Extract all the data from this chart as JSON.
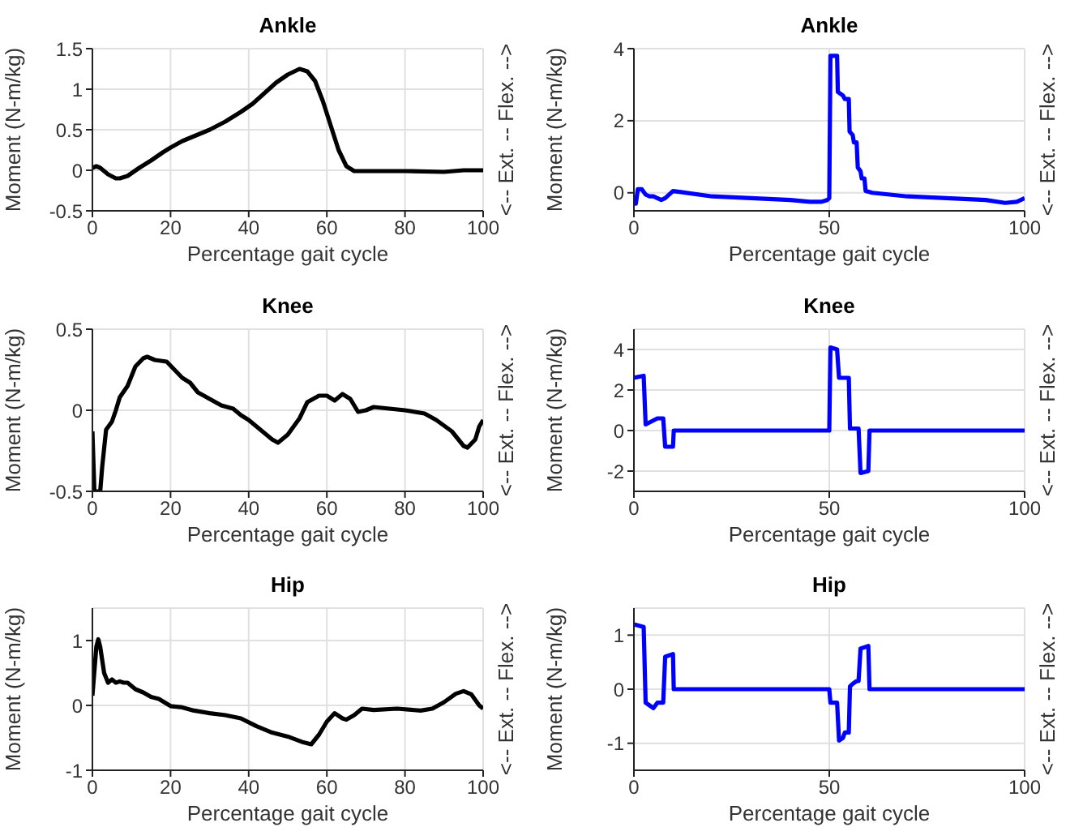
{
  "chart_data": [
    {
      "type": "line",
      "title": "Ankle",
      "xlabel": "Percentage gait cycle",
      "ylabel": "Moment (N-m/kg)",
      "y2label": "<-- Ext. -- Flex. -->",
      "grid": true,
      "xlim": [
        0,
        100
      ],
      "xticks": [
        0,
        20,
        40,
        60,
        80,
        100
      ],
      "ylim": [
        -0.5,
        1.5
      ],
      "yticks": [
        -0.5,
        0,
        0.5,
        1,
        1.5
      ],
      "x": [
        0,
        1,
        2,
        4,
        6,
        7,
        9,
        12,
        15,
        18,
        20,
        23,
        26,
        30,
        34,
        38,
        41,
        44,
        47,
        50,
        53,
        55,
        57,
        59,
        61,
        63,
        65,
        67,
        70,
        80,
        90,
        95,
        100
      ],
      "series": [
        {
          "color": "#000000",
          "values": [
            0.03,
            0.05,
            0.03,
            -0.05,
            -0.1,
            -0.1,
            -0.07,
            0.03,
            0.12,
            0.22,
            0.28,
            0.36,
            0.42,
            0.5,
            0.6,
            0.72,
            0.82,
            0.95,
            1.08,
            1.18,
            1.25,
            1.22,
            1.1,
            0.85,
            0.55,
            0.25,
            0.05,
            -0.01,
            -0.01,
            -0.01,
            -0.02,
            0,
            0
          ]
        }
      ]
    },
    {
      "type": "line",
      "title": "Ankle",
      "xlabel": "Percentage gait cycle",
      "ylabel": "Moment (N-m/kg)",
      "y2label": "<-- Ext. -- Flex. -->",
      "grid": true,
      "xlim": [
        0,
        100
      ],
      "xticks": [
        0,
        50,
        100
      ],
      "ylim": [
        -0.5,
        4
      ],
      "yticks": [
        0,
        2,
        4
      ],
      "x": [
        0,
        0.5,
        1,
        2,
        3,
        4,
        5,
        6,
        7,
        8,
        10,
        12,
        20,
        30,
        40,
        45,
        48,
        49.5,
        50,
        50.3,
        52,
        52.2,
        53.5,
        54,
        55,
        55.2,
        56,
        56.3,
        57,
        57.3,
        58,
        58.3,
        59,
        59.3,
        61,
        70,
        80,
        90,
        95,
        98,
        100
      ],
      "series": [
        {
          "color": "#0000ff",
          "values": [
            -0.3,
            -0.3,
            0.1,
            0.1,
            -0.05,
            -0.1,
            -0.1,
            -0.15,
            -0.2,
            -0.15,
            0.05,
            0.02,
            -0.1,
            -0.15,
            -0.2,
            -0.25,
            -0.25,
            -0.2,
            -0.15,
            3.8,
            3.8,
            2.8,
            2.7,
            2.6,
            2.6,
            1.7,
            1.6,
            1.4,
            1.4,
            0.7,
            0.6,
            0.4,
            0.4,
            0.05,
            0,
            -0.1,
            -0.15,
            -0.2,
            -0.28,
            -0.25,
            -0.15
          ]
        }
      ]
    },
    {
      "type": "line",
      "title": "Knee",
      "xlabel": "Percentage gait cycle",
      "ylabel": "Moment (N-m/kg)",
      "y2label": "<-- Ext. -- Flex. -->",
      "grid": true,
      "xlim": [
        0,
        100
      ],
      "xticks": [
        0,
        20,
        40,
        60,
        80,
        100
      ],
      "ylim": [
        -0.5,
        0.5
      ],
      "yticks": [
        -0.5,
        0,
        0.5
      ],
      "x": [
        0,
        0.5,
        2,
        2.5,
        3.5,
        5,
        6,
        7,
        9,
        11,
        13,
        14,
        16,
        19,
        21,
        23,
        25,
        27,
        30,
        33,
        36,
        38,
        40,
        43,
        46,
        47.5,
        50,
        53,
        55,
        58,
        60,
        62,
        64,
        66,
        68,
        70,
        72,
        76,
        80,
        85,
        88,
        92,
        95,
        96,
        98,
        99,
        100
      ],
      "series": [
        {
          "color": "#000000",
          "values": [
            -0.13,
            -0.5,
            -0.5,
            -0.35,
            -0.12,
            -0.07,
            0,
            0.08,
            0.15,
            0.27,
            0.32,
            0.33,
            0.31,
            0.3,
            0.25,
            0.2,
            0.17,
            0.11,
            0.07,
            0.03,
            0.01,
            -0.03,
            -0.06,
            -0.12,
            -0.18,
            -0.2,
            -0.15,
            -0.05,
            0.05,
            0.09,
            0.09,
            0.06,
            0.1,
            0.07,
            -0.01,
            0,
            0.02,
            0.01,
            0,
            -0.02,
            -0.06,
            -0.13,
            -0.22,
            -0.23,
            -0.18,
            -0.1,
            -0.06
          ]
        }
      ]
    },
    {
      "type": "line",
      "title": "Knee",
      "xlabel": "Percentage gait cycle",
      "ylabel": "Moment (N-m/kg)",
      "y2label": "<-- Ext. -- Flex. -->",
      "grid": true,
      "xlim": [
        0,
        100
      ],
      "xticks": [
        0,
        50,
        100
      ],
      "ylim": [
        -3,
        5
      ],
      "yticks": [
        -2,
        0,
        2,
        4
      ],
      "x": [
        0,
        2.5,
        3,
        4,
        6,
        7.5,
        8,
        10,
        10.2,
        50,
        50.3,
        52,
        52.5,
        55,
        55.3,
        57.5,
        58,
        60,
        60.3,
        100
      ],
      "series": [
        {
          "color": "#0000ff",
          "values": [
            2.6,
            2.7,
            0.3,
            0.4,
            0.6,
            0.6,
            -0.8,
            -0.8,
            0,
            0,
            4.1,
            4,
            2.6,
            2.6,
            0.1,
            0.1,
            -2.1,
            -2,
            0,
            0
          ]
        }
      ]
    },
    {
      "type": "line",
      "title": "Hip",
      "xlabel": "Percentage gait cycle",
      "ylabel": "Moment (N-m/kg)",
      "y2label": "<-- Ext. -- Flex. -->",
      "grid": true,
      "xlim": [
        0,
        100
      ],
      "xticks": [
        0,
        20,
        40,
        60,
        80,
        100
      ],
      "ylim": [
        -1,
        1.5
      ],
      "yticks": [
        -1,
        0,
        1
      ],
      "x": [
        0,
        1,
        1.5,
        2,
        3,
        4,
        5,
        6,
        7,
        8,
        9,
        11,
        13,
        15,
        17,
        20,
        23,
        26,
        30,
        34,
        38,
        42,
        46,
        50,
        54,
        56,
        58,
        60,
        62,
        64,
        65,
        67,
        69,
        72,
        78,
        84,
        87,
        90,
        93,
        95,
        97,
        99,
        100
      ],
      "series": [
        {
          "color": "#000000",
          "values": [
            0.15,
            0.9,
            1.02,
            0.9,
            0.5,
            0.35,
            0.4,
            0.35,
            0.37,
            0.35,
            0.35,
            0.25,
            0.2,
            0.13,
            0.1,
            -0.01,
            -0.03,
            -0.08,
            -0.12,
            -0.15,
            -0.2,
            -0.32,
            -0.42,
            -0.48,
            -0.57,
            -0.6,
            -0.45,
            -0.25,
            -0.12,
            -0.2,
            -0.22,
            -0.15,
            -0.05,
            -0.07,
            -0.05,
            -0.08,
            -0.05,
            0.05,
            0.18,
            0.22,
            0.17,
            0,
            -0.05
          ]
        }
      ]
    },
    {
      "type": "line",
      "title": "Hip",
      "xlabel": "Percentage gait cycle",
      "ylabel": "Moment (N-m/kg)",
      "y2label": "<-- Ext. -- Flex. -->",
      "grid": true,
      "xlim": [
        0,
        100
      ],
      "xticks": [
        0,
        50,
        100
      ],
      "ylim": [
        -1.5,
        1.5
      ],
      "yticks": [
        -1,
        0,
        1
      ],
      "x": [
        0,
        2.5,
        3,
        4,
        5,
        6,
        7.5,
        8,
        10,
        10.2,
        50,
        50.3,
        52,
        52.5,
        53.5,
        54,
        55,
        55.3,
        56,
        57,
        57.5,
        58,
        60,
        60.3,
        100
      ],
      "series": [
        {
          "color": "#0000ff",
          "values": [
            1.2,
            1.15,
            -0.25,
            -0.3,
            -0.35,
            -0.25,
            -0.25,
            0.6,
            0.65,
            0,
            0,
            -0.25,
            -0.25,
            -0.95,
            -0.9,
            -0.8,
            -0.8,
            0.05,
            0.1,
            0.15,
            0.15,
            0.75,
            0.8,
            0,
            0
          ]
        }
      ]
    }
  ]
}
